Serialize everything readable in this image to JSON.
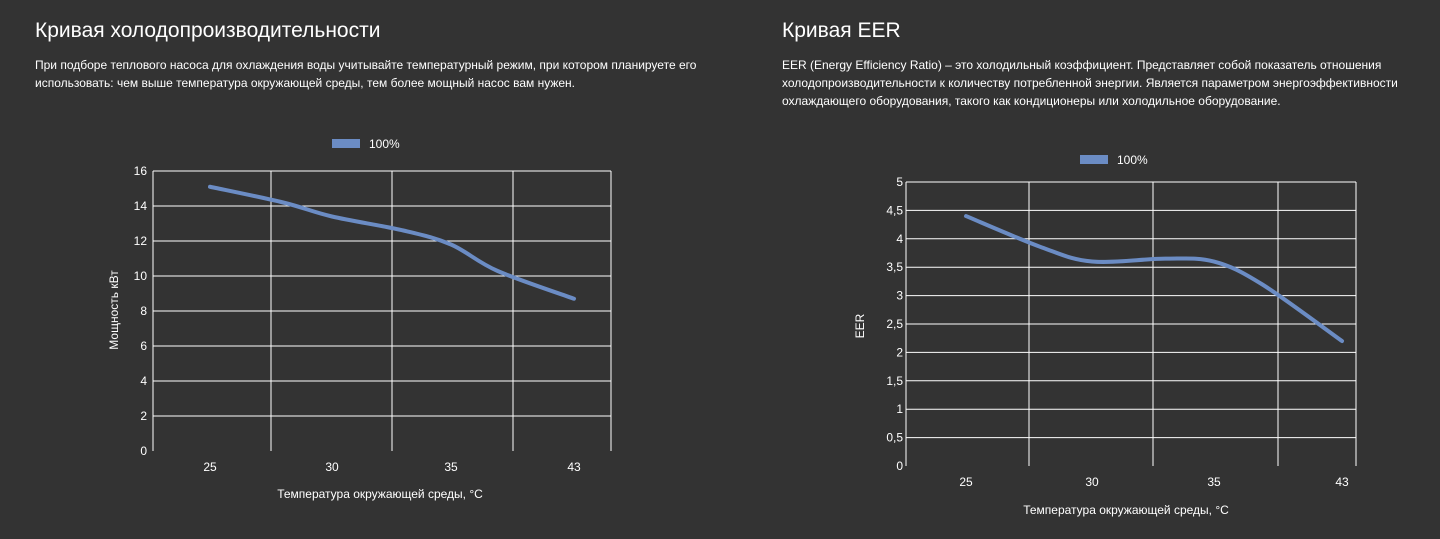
{
  "left": {
    "title": "Кривая холодопроизводительности",
    "description": "При подборе теплового насоса для охлаждения воды учитывайте температурный режим, при котором планируете его использовать: чем выше температура окружающей среды, тем более мощный насос вам нужен."
  },
  "right": {
    "title": "Кривая EER",
    "description": "EER (Energy Efficiency Ratio) – это холодильный коэффициент. Представляет собой показатель отношения холодопроизводительности к количеству потребленной энергии. Является параметром энергоэффективности охлаждающего оборудования, такого как кондиционеры или холодильное оборудование."
  },
  "chart_data": [
    {
      "type": "line",
      "categories": [
        "25",
        "30",
        "35",
        "43"
      ],
      "y_ticks": [
        "0",
        "2",
        "4",
        "6",
        "8",
        "10",
        "12",
        "14",
        "16"
      ],
      "ylim": [
        0,
        16
      ],
      "xlabel": "Температура окружающей среды, °С",
      "ylabel": "Мощность кВт",
      "legend_position": "top",
      "grid": true,
      "series": [
        {
          "name": "100%",
          "color": "#6b8cc4",
          "points": [
            {
              "x": 25,
              "y": 15.1
            },
            {
              "x": 28,
              "y": 14.2
            },
            {
              "x": 30,
              "y": 13.4
            },
            {
              "x": 33,
              "y": 12.6
            },
            {
              "x": 35,
              "y": 11.8
            },
            {
              "x": 38,
              "y": 10.3
            },
            {
              "x": 43,
              "y": 8.7
            }
          ]
        }
      ]
    },
    {
      "type": "line",
      "categories": [
        "25",
        "30",
        "35",
        "43"
      ],
      "y_ticks": [
        "0",
        "0,5",
        "1",
        "1,5",
        "2",
        "2,5",
        "3",
        "3,5",
        "4",
        "4,5",
        "5"
      ],
      "ylim": [
        0,
        5
      ],
      "xlabel": "Температура окружающей среды, °С",
      "ylabel": "EER",
      "legend_position": "top",
      "grid": true,
      "series": [
        {
          "name": "100%",
          "color": "#6b8cc4",
          "points": [
            {
              "x": 25,
              "y": 4.4
            },
            {
              "x": 28,
              "y": 3.85
            },
            {
              "x": 30,
              "y": 3.6
            },
            {
              "x": 33,
              "y": 3.65
            },
            {
              "x": 35,
              "y": 3.6
            },
            {
              "x": 38,
              "y": 3.2
            },
            {
              "x": 43,
              "y": 2.2
            }
          ]
        }
      ]
    }
  ]
}
